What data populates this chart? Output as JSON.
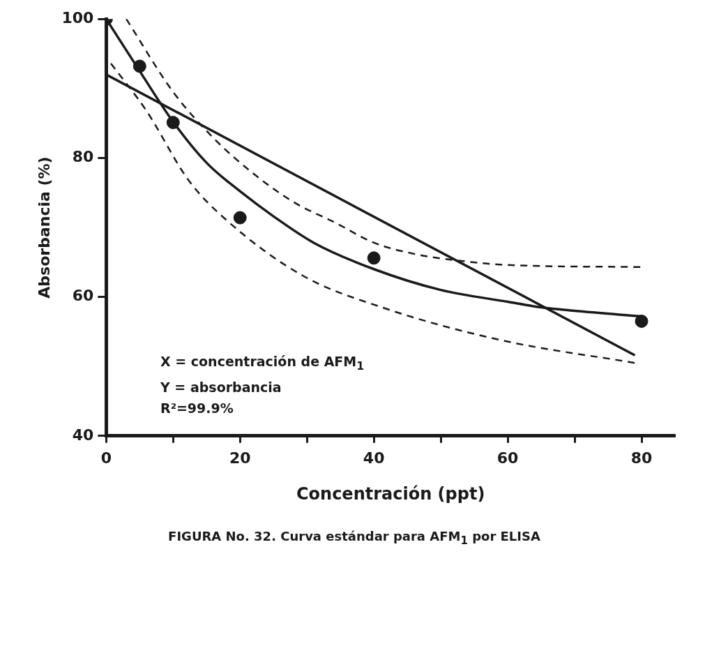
{
  "chart_data": {
    "type": "line",
    "xlabel": "Concentración (ppt)",
    "ylabel": "Absorbancia (%)",
    "xlim": [
      0,
      85
    ],
    "xticks": [
      0,
      {
        "value": 10,
        "label": null
      },
      20,
      {
        "value": 30,
        "label": null
      },
      40,
      {
        "value": 50,
        "label": null
      },
      60,
      {
        "value": 70,
        "label": null
      },
      80
    ],
    "ylim": [
      40,
      100
    ],
    "yticks": [
      40,
      60,
      80,
      100
    ],
    "annotations": [
      "X = concentración de AFM$_{1}$",
      "Y = absorbancia",
      "R²=99.9%",
      "FIGURA No. 32. Curva estándar para AFM$_{1}$ por ELISA"
    ],
    "series": [
      {
        "type": "scatter",
        "color": "#1a1a1a",
        "marker": "circle",
        "x": [
          0,
          5,
          10,
          20,
          40,
          80
        ],
        "values": [
          100,
          93.2,
          85.1,
          71.4,
          65.6,
          56.5
        ]
      },
      {
        "type": "line",
        "color": "#1a1a1a",
        "marker": "none",
        "line_style": "solid",
        "x": [
          0,
          5,
          10,
          15,
          20,
          25,
          31,
          40,
          50,
          60,
          65,
          70,
          80
        ],
        "values": [
          100,
          92.5,
          85.2,
          79.3,
          75.2,
          71.6,
          67.8,
          64,
          61,
          59.3,
          58.5,
          58,
          57.2
        ]
      },
      {
        "type": "line",
        "color": "#1a1a1a",
        "marker": "none",
        "line_style": "solid",
        "x": [
          0,
          79
        ],
        "values": [
          92,
          51.6
        ]
      },
      {
        "type": "line",
        "color": "#1a1a1a",
        "marker": "none",
        "line_style": "dashed",
        "x": [
          3,
          10,
          16,
          21.8,
          28.1,
          34.4,
          40,
          46,
          52,
          60,
          80
        ],
        "values": [
          100,
          89.5,
          82.9,
          77.9,
          73.6,
          70.6,
          67.8,
          66.2,
          65.3,
          64.6,
          64.3
        ]
      },
      {
        "type": "line",
        "color": "#1a1a1a",
        "marker": "none",
        "line_style": "dashed",
        "x": [
          0.7,
          6,
          12.3,
          17.8,
          29.3,
          41.2,
          58.9,
          79
        ],
        "values": [
          93.6,
          86.8,
          76.8,
          71.2,
          63.1,
          58.5,
          53.8,
          50.5
        ]
      }
    ]
  }
}
